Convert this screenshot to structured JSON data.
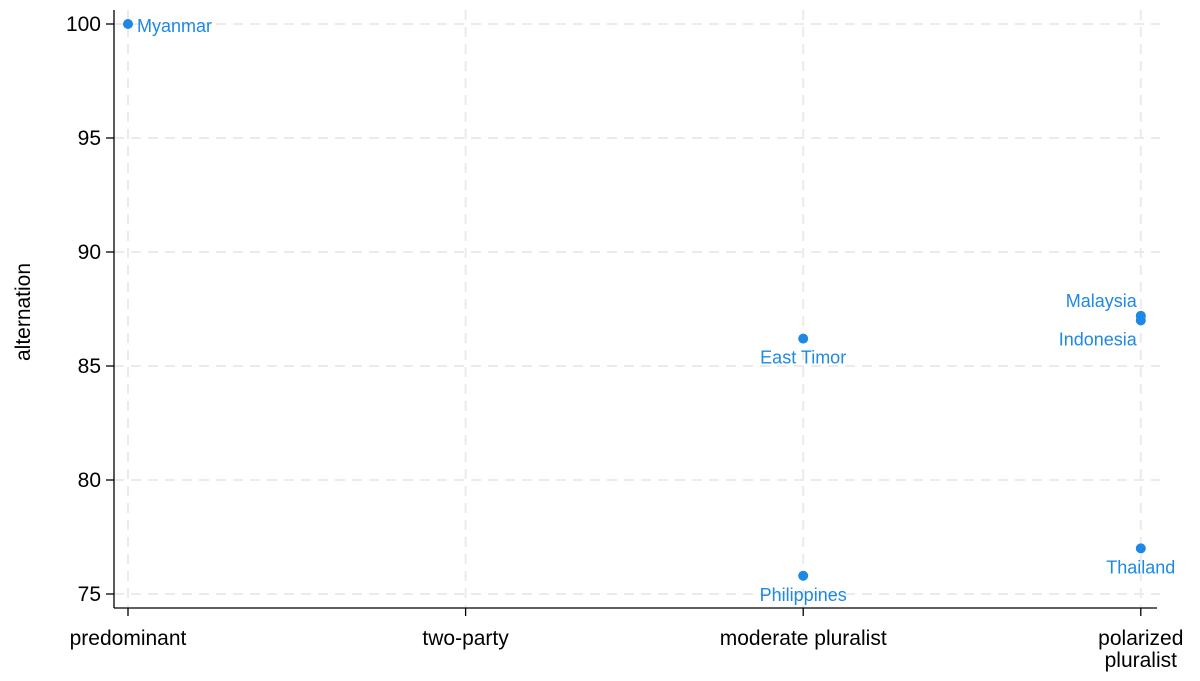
{
  "chart_data": {
    "type": "scatter",
    "title": "",
    "xlabel": "",
    "ylabel": "alternation",
    "categories": [
      [
        "predominant"
      ],
      [
        "two-party"
      ],
      [
        "moderate pluralist"
      ],
      [
        "polarized",
        "pluralist"
      ]
    ],
    "ylim": [
      75,
      100
    ],
    "yticks": [
      75,
      80,
      85,
      90,
      95,
      100
    ],
    "grid": true,
    "marker_color": "#1e88e5",
    "points": [
      {
        "label": "Myanmar",
        "category_index": 0,
        "y": 100,
        "label_pos": "right"
      },
      {
        "label": "East Timor",
        "category_index": 2,
        "y": 86.2,
        "label_pos": "below"
      },
      {
        "label": "Philippines",
        "category_index": 2,
        "y": 75.8,
        "label_pos": "below"
      },
      {
        "label": "Malaysia",
        "category_index": 3,
        "y": 87.2,
        "label_pos": "above-left"
      },
      {
        "label": "Indonesia",
        "category_index": 3,
        "y": 87,
        "label_pos": "below-left"
      },
      {
        "label": "Thailand",
        "category_index": 3,
        "y": 77,
        "label_pos": "below"
      }
    ]
  }
}
